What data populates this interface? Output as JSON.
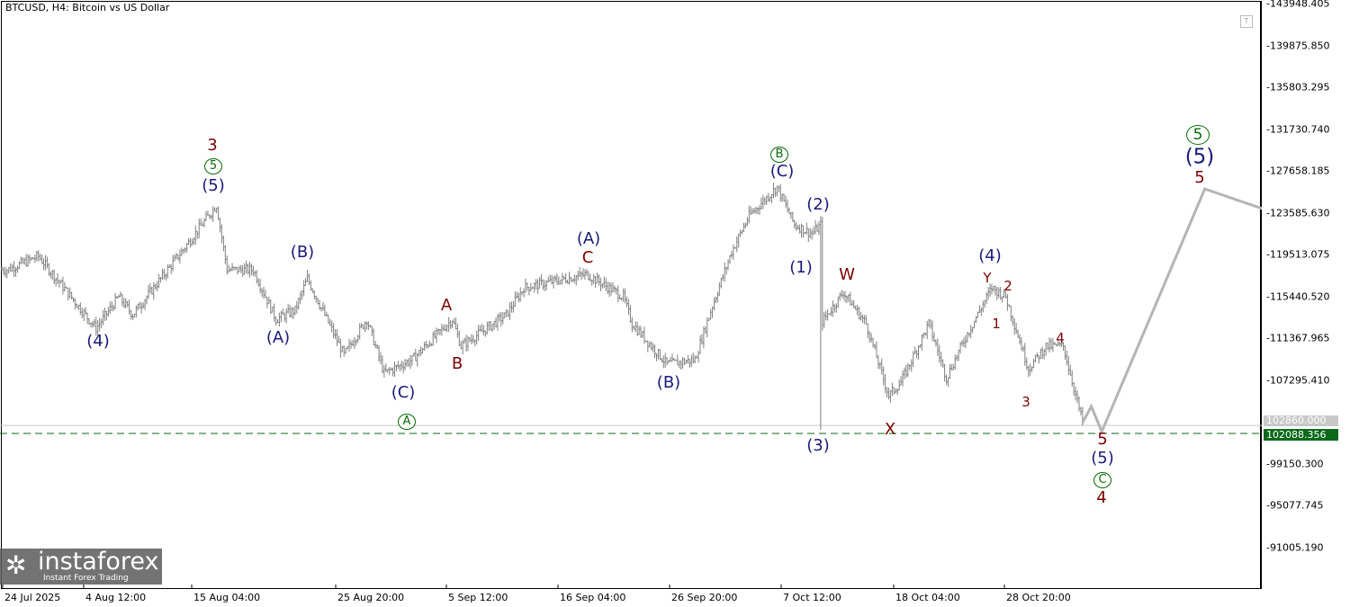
{
  "header": {
    "title": "BTCUSD, H4:  Bitcoin vs US Dollar",
    "template_icon": "T"
  },
  "chart_data": {
    "type": "ohlc-bar",
    "symbol": "BTCUSD",
    "timeframe": "H4",
    "ylim": [
      89000,
      145000
    ],
    "y_ticks": [
      "143948.405",
      "139875.850",
      "135803.295",
      "131730.740",
      "127658.185",
      "123585.630",
      "119513.075",
      "115440.520",
      "111367.965",
      "107295.410",
      "99150.300",
      "95077.745",
      "91005.190"
    ],
    "x_ticks": [
      "24 Jul 2025",
      "4 Aug 12:00",
      "15 Aug 04:00",
      "25 Aug 20:00",
      "5 Sep 12:00",
      "16 Sep 04:00",
      "26 Sep 20:00",
      "7 Oct 12:00",
      "18 Oct 04:00",
      "28 Oct 20:00"
    ],
    "price_path_bar_index_price": [
      [
        0,
        118024
      ],
      [
        3,
        118024
      ],
      [
        21,
        119338
      ],
      [
        54,
        112332
      ],
      [
        67,
        115397
      ],
      [
        75,
        113646
      ],
      [
        103,
        119776
      ],
      [
        123,
        124330
      ],
      [
        129,
        118024
      ],
      [
        144,
        118024
      ],
      [
        157,
        113208
      ],
      [
        168,
        114084
      ],
      [
        175,
        117149
      ],
      [
        196,
        109705
      ],
      [
        209,
        113208
      ],
      [
        219,
        107954
      ],
      [
        235,
        109267
      ],
      [
        258,
        113208
      ],
      [
        263,
        110581
      ],
      [
        289,
        113646
      ],
      [
        299,
        116273
      ],
      [
        335,
        117587
      ],
      [
        356,
        115397
      ],
      [
        361,
        112770
      ],
      [
        381,
        108829
      ],
      [
        397,
        109267
      ],
      [
        407,
        114521
      ],
      [
        418,
        119776
      ],
      [
        428,
        123279
      ],
      [
        444,
        126082
      ],
      [
        454,
        122404
      ],
      [
        464,
        121528
      ],
      [
        469,
        122404
      ],
      [
        470,
        113000
      ],
      [
        482,
        115835
      ],
      [
        495,
        112770
      ],
      [
        508,
        105763
      ],
      [
        515,
        107078
      ],
      [
        531,
        112770
      ],
      [
        541,
        107516
      ],
      [
        552,
        111457
      ],
      [
        567,
        116273
      ],
      [
        575,
        115397
      ],
      [
        588,
        108392
      ],
      [
        598,
        110581
      ],
      [
        608,
        110581
      ],
      [
        619,
        103136
      ]
    ],
    "spike_low": {
      "bar": 469,
      "price": 102435
    },
    "forecast_path": [
      [
        619,
        103136
      ],
      [
        624,
        104710
      ],
      [
        630,
        102260
      ],
      [
        689,
        125900
      ],
      [
        722,
        123980
      ]
    ],
    "current_price_label": "102860.000",
    "level_line": {
      "price": 102088.356,
      "label": "102088.356",
      "style": "dashed",
      "color": "#0a6a1a"
    },
    "colors": {
      "bars": "#7f7f7f",
      "forecast": "#b4b4b4",
      "navy": "#1a1a7a",
      "red": "#7a0000",
      "green": "#0a6a0a"
    }
  },
  "annotations": [
    "3",
    "5",
    "(5)",
    "(4)",
    "(B)",
    "(A)",
    "A",
    "B",
    "(C)",
    "A",
    "(A)",
    "C",
    "(B)",
    "B",
    "(C)",
    "(2)",
    "(1)",
    "W",
    "(3)",
    "X",
    "(4)",
    "Y",
    "2",
    "1",
    "4",
    "3",
    "5",
    "(5)",
    "C",
    "4",
    "5",
    "(5)",
    "5"
  ],
  "logo": {
    "name": "instaforex",
    "tagline": "Instant Forex Trading"
  }
}
